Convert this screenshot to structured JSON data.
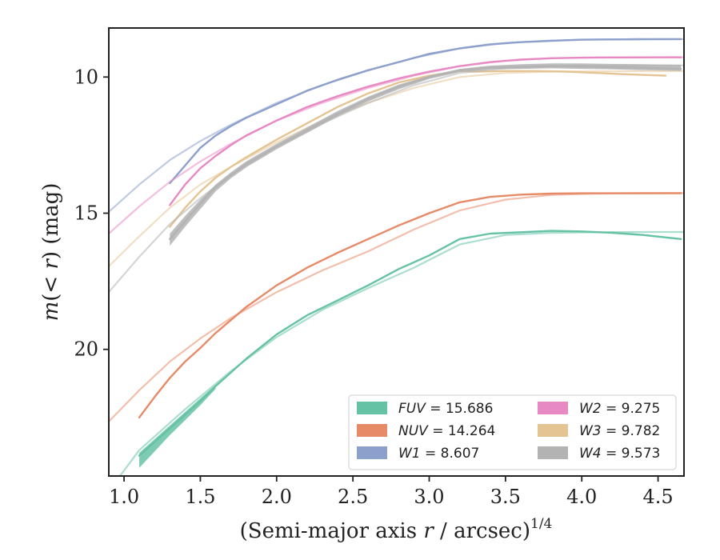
{
  "chart_data": {
    "type": "line",
    "xlabel": "(Semi-major axis r / arcsec)",
    "xlabel_italic": "r",
    "xlabel_prefix": "(Semi-major axis ",
    "xlabel_suffix": " / arcsec)",
    "xlabel_sup": "1/4",
    "ylabel": "m(< r) (mag)",
    "ylabel_italic": "m",
    "ylabel_mid": "(< ",
    "ylabel_r": "r",
    "ylabel_suffix": ") (mag)",
    "xlim": [
      0.9,
      4.67
    ],
    "ylim": [
      24.65,
      8.2
    ],
    "y_inverted": true,
    "xticks": [
      "1.0",
      "1.5",
      "2.0",
      "2.5",
      "3.0",
      "3.5",
      "4.0",
      "4.5"
    ],
    "xtick_values": [
      1.0,
      1.5,
      2.0,
      2.5,
      3.0,
      3.5,
      4.0,
      4.5
    ],
    "yticks": [
      "10",
      "15",
      "20"
    ],
    "ytick_values": [
      10,
      15,
      20
    ],
    "grid": false,
    "legend_position": "lower-right",
    "legend_columns": 2,
    "series": [
      {
        "name": "FUV = 15.686",
        "legend_italic": "FUV",
        "legend_value": " = 15.686",
        "color": "#66c2a5",
        "x": [
          1.1,
          1.2,
          1.3,
          1.4,
          1.5,
          1.6,
          1.7,
          1.8,
          1.9,
          2.0,
          2.2,
          2.4,
          2.6,
          2.8,
          3.0,
          3.2,
          3.4,
          3.6,
          3.8,
          4.0,
          4.2,
          4.4,
          4.65
        ],
        "y": [
          23.9,
          23.4,
          22.9,
          22.4,
          21.9,
          21.35,
          20.85,
          20.35,
          19.9,
          19.45,
          18.75,
          18.2,
          17.65,
          17.05,
          16.55,
          15.95,
          15.75,
          15.7,
          15.65,
          15.67,
          15.72,
          15.8,
          15.95
        ],
        "ribbon_x": [
          1.1,
          1.2,
          1.3,
          1.4,
          1.5,
          1.6
        ],
        "ribbon_lo": [
          23.8,
          23.3,
          22.8,
          22.3,
          21.8,
          21.3
        ],
        "ribbon_hi": [
          24.35,
          23.75,
          23.15,
          22.6,
          22.05,
          21.45
        ],
        "fit_x": [
          0.9,
          1.1,
          1.4,
          1.7,
          2.0,
          2.3,
          2.6,
          2.9,
          3.2,
          3.5,
          3.8,
          4.1,
          4.4,
          4.67
        ],
        "fit_y": [
          25.2,
          23.7,
          22.2,
          20.8,
          19.55,
          18.55,
          17.75,
          17.0,
          16.15,
          15.8,
          15.72,
          15.7,
          15.69,
          15.69
        ]
      },
      {
        "name": "NUV = 14.264",
        "legend_italic": "NUV",
        "legend_value": " = 14.264",
        "color": "#e78a68",
        "x": [
          1.1,
          1.2,
          1.3,
          1.4,
          1.5,
          1.6,
          1.8,
          2.0,
          2.2,
          2.4,
          2.6,
          2.8,
          3.0,
          3.2,
          3.4,
          3.6,
          3.8,
          4.0,
          4.2,
          4.4,
          4.65
        ],
        "y": [
          22.5,
          21.75,
          21.05,
          20.45,
          19.95,
          19.4,
          18.45,
          17.65,
          17.0,
          16.45,
          15.95,
          15.45,
          15.0,
          14.6,
          14.4,
          14.32,
          14.28,
          14.27,
          14.27,
          14.265,
          14.265
        ],
        "fit_x": [
          0.9,
          1.1,
          1.3,
          1.5,
          1.7,
          2.0,
          2.3,
          2.6,
          2.9,
          3.2,
          3.5,
          3.8,
          4.1,
          4.4,
          4.67
        ],
        "fit_y": [
          22.65,
          21.5,
          20.45,
          19.6,
          18.85,
          17.9,
          17.1,
          16.4,
          15.6,
          14.9,
          14.5,
          14.33,
          14.28,
          14.27,
          14.264
        ]
      },
      {
        "name": "W1 = 8.607",
        "legend_italic": "W1",
        "legend_value": " = 8.607",
        "color": "#8da0cb",
        "x": [
          1.3,
          1.4,
          1.5,
          1.6,
          1.7,
          1.8,
          2.0,
          2.2,
          2.4,
          2.6,
          2.8,
          3.0,
          3.2,
          3.4,
          3.6,
          3.8,
          4.0,
          4.2,
          4.4,
          4.65
        ],
        "y": [
          13.9,
          13.25,
          12.6,
          12.15,
          11.8,
          11.5,
          11.0,
          10.5,
          10.1,
          9.75,
          9.45,
          9.15,
          8.95,
          8.8,
          8.72,
          8.67,
          8.63,
          8.62,
          8.61,
          8.607
        ],
        "fit_x": [
          0.9,
          1.1,
          1.3,
          1.5,
          1.7,
          2.0,
          2.3,
          2.6,
          2.9,
          3.2,
          3.5,
          3.8,
          4.1,
          4.4,
          4.67
        ],
        "fit_y": [
          14.95,
          13.95,
          13.05,
          12.35,
          11.75,
          10.95,
          10.3,
          9.75,
          9.3,
          8.95,
          8.75,
          8.66,
          8.62,
          8.61,
          8.607
        ]
      },
      {
        "name": "W2 = 9.275",
        "legend_italic": "W2",
        "legend_value": " = 9.275",
        "color": "#e78ac3",
        "x": [
          1.3,
          1.4,
          1.5,
          1.6,
          1.7,
          1.8,
          2.0,
          2.2,
          2.4,
          2.6,
          2.8,
          3.0,
          3.2,
          3.4,
          3.6,
          3.8,
          4.0,
          4.2,
          4.4,
          4.65
        ],
        "y": [
          14.7,
          13.95,
          13.35,
          12.9,
          12.5,
          12.15,
          11.6,
          11.1,
          10.7,
          10.35,
          10.05,
          9.8,
          9.6,
          9.45,
          9.36,
          9.31,
          9.29,
          9.28,
          9.277,
          9.275
        ],
        "fit_x": [
          0.9,
          1.1,
          1.3,
          1.5,
          1.7,
          2.0,
          2.3,
          2.6,
          2.9,
          3.2,
          3.5,
          3.8,
          4.1,
          4.4,
          4.67
        ],
        "fit_y": [
          15.75,
          14.75,
          13.85,
          13.1,
          12.45,
          11.6,
          10.95,
          10.4,
          9.95,
          9.6,
          9.4,
          9.31,
          9.28,
          9.276,
          9.275
        ]
      },
      {
        "name": "W3 = 9.782",
        "legend_italic": "W3",
        "legend_value": " = 9.782",
        "color": "#e5c494",
        "x": [
          1.3,
          1.4,
          1.5,
          1.6,
          1.7,
          1.8,
          2.0,
          2.2,
          2.4,
          2.6,
          2.8,
          3.0,
          3.2,
          3.3,
          3.5,
          3.7,
          3.9,
          4.1,
          4.3,
          4.55
        ],
        "y": [
          15.5,
          14.8,
          14.2,
          13.7,
          13.3,
          12.95,
          12.3,
          11.7,
          11.1,
          10.6,
          10.2,
          9.95,
          9.78,
          9.8,
          9.78,
          9.78,
          9.8,
          9.85,
          9.9,
          9.95
        ],
        "fit_x": [
          0.9,
          1.1,
          1.3,
          1.5,
          1.7,
          2.0,
          2.3,
          2.6,
          2.9,
          3.2,
          3.5,
          3.8,
          4.1,
          4.4,
          4.67
        ],
        "fit_y": [
          16.95,
          15.85,
          14.8,
          13.95,
          13.3,
          12.4,
          11.6,
          10.95,
          10.4,
          10.0,
          9.85,
          9.8,
          9.79,
          9.785,
          9.782
        ]
      },
      {
        "name": "W4 = 9.573",
        "legend_italic": "W4",
        "legend_value": " = 9.573",
        "color": "#b3b3b3",
        "x": [
          1.3,
          1.4,
          1.5,
          1.6,
          1.7,
          1.8,
          2.0,
          2.2,
          2.4,
          2.6,
          2.8,
          3.0,
          3.2,
          3.4,
          3.6,
          3.8,
          4.0,
          4.2,
          4.4,
          4.65
        ],
        "y": [
          15.95,
          15.3,
          14.65,
          14.05,
          13.6,
          13.2,
          12.55,
          11.95,
          11.35,
          10.8,
          10.35,
          10.0,
          9.75,
          9.65,
          9.62,
          9.6,
          9.61,
          9.64,
          9.66,
          9.7
        ],
        "ribbon_x": [
          1.3,
          1.4,
          1.5,
          1.6,
          1.7,
          1.8,
          2.0,
          2.2,
          2.4,
          2.6,
          2.8,
          3.0,
          3.2,
          3.4,
          3.6,
          3.8,
          4.0,
          4.2,
          4.4,
          4.65
        ],
        "ribbon_lo": [
          15.75,
          15.1,
          14.5,
          13.95,
          13.5,
          13.1,
          12.45,
          11.85,
          11.25,
          10.72,
          10.28,
          9.95,
          9.7,
          9.58,
          9.53,
          9.5,
          9.5,
          9.52,
          9.53,
          9.55
        ],
        "ribbon_hi": [
          16.2,
          15.5,
          14.85,
          14.2,
          13.72,
          13.32,
          12.65,
          12.05,
          11.45,
          10.9,
          10.45,
          10.07,
          9.82,
          9.72,
          9.7,
          9.68,
          9.7,
          9.72,
          9.75,
          9.78
        ],
        "fit_x": [
          0.9,
          1.1,
          1.3,
          1.5,
          1.7,
          2.0,
          2.3,
          2.6,
          2.9,
          3.2,
          3.5,
          3.8,
          4.1,
          4.4,
          4.67
        ],
        "fit_y": [
          17.9,
          16.6,
          15.4,
          14.45,
          13.6,
          12.55,
          11.7,
          10.95,
          10.3,
          9.85,
          9.68,
          9.6,
          9.58,
          9.575,
          9.573
        ]
      }
    ]
  }
}
